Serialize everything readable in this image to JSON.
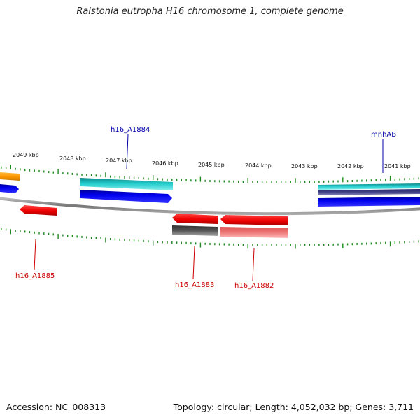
{
  "title": "Ralstonia eutropha H16 chromosome 1, complete genome",
  "footer": {
    "accession": "Accession: NC_008313",
    "summary": "Topology: circular; Length: 4,052,032 bp; Genes: 3,711"
  },
  "ticks": [
    {
      "label": "2049 kbp",
      "id": "2049"
    },
    {
      "label": "2048 kbp",
      "id": "2048"
    },
    {
      "label": "2047 kbp",
      "id": "2047"
    },
    {
      "label": "2046 kbp",
      "id": "2046"
    },
    {
      "label": "2045 kbp",
      "id": "2045"
    },
    {
      "label": "2044 kbp",
      "id": "2044"
    },
    {
      "label": "2043 kbp",
      "id": "2043"
    },
    {
      "label": "2042 kbp",
      "id": "2042"
    },
    {
      "label": "2041 kbp",
      "id": "2041"
    }
  ],
  "genes": {
    "h16_A1884": "h16_A1884",
    "mnhAB": "mnhAB",
    "h16_A1885": "h16_A1885",
    "h16_A1883": "h16_A1883",
    "h16_A1882": "h16_A1882"
  },
  "colors": {
    "forward_label": "#0000aa",
    "reverse_label": "#cc0000",
    "tick": "#1f8a1f",
    "backbone": "#777777",
    "cyan": "#22cccc",
    "blue": "#0000ee",
    "red": "#ee0000",
    "orange": "#ff9900",
    "gray": "#555555",
    "pink": "#ee7777"
  }
}
